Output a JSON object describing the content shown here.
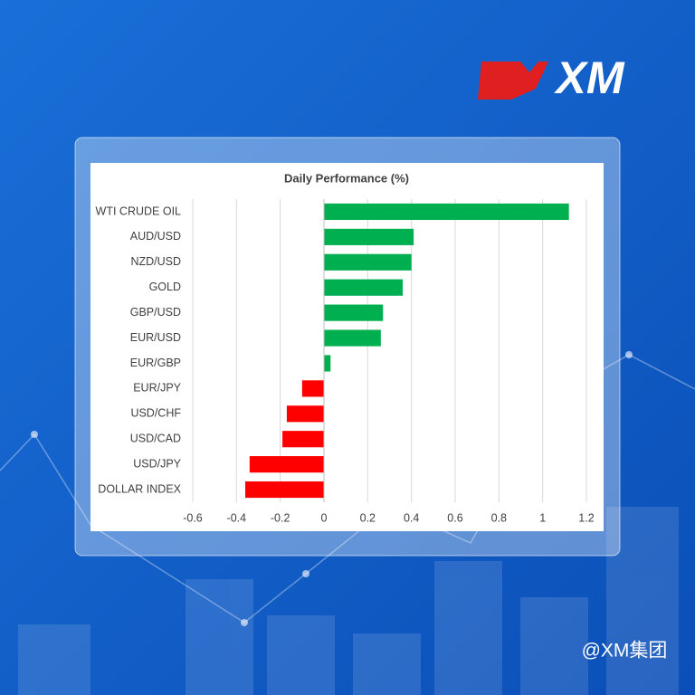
{
  "logo": "XM",
  "watermark": "@XM集团",
  "chart_data": {
    "type": "bar",
    "orientation": "horizontal",
    "title": "Daily Performance (%)",
    "categories": [
      "WTI CRUDE OIL",
      "AUD/USD",
      "NZD/USD",
      "GOLD",
      "GBP/USD",
      "EUR/USD",
      "EUR/GBP",
      "EUR/JPY",
      "USD/CHF",
      "USD/CAD",
      "USD/JPY",
      "DOLLAR INDEX"
    ],
    "values": [
      1.12,
      0.41,
      0.4,
      0.36,
      0.27,
      0.26,
      0.03,
      -0.1,
      -0.17,
      -0.19,
      -0.34,
      -0.36
    ],
    "positive_color": "#00b050",
    "negative_color": "#ff0000",
    "xlim": [
      -0.6,
      1.2
    ],
    "xticks": [
      -0.6,
      -0.4,
      -0.2,
      0,
      0.2,
      0.4,
      0.6,
      0.8,
      1,
      1.2
    ],
    "grid": true
  }
}
